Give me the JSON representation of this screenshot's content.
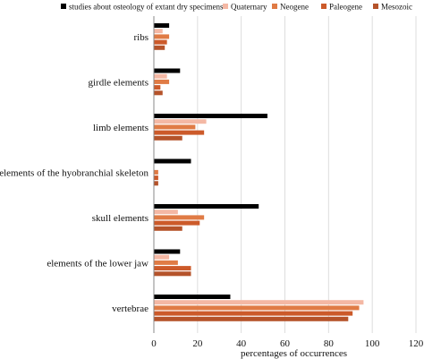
{
  "chart_data": {
    "type": "bar",
    "orientation": "horizontal",
    "title": "",
    "xlabel": "percentages of occurrences",
    "ylabel": "",
    "xlim": [
      0,
      120
    ],
    "xticks": [
      "0",
      "20",
      "40",
      "60",
      "80",
      "100",
      "120"
    ],
    "grid": true,
    "legend_position": "top",
    "categories": [
      "ribs",
      "girdle elements",
      "limb elements",
      "elements of the hyobranchial skeleton",
      "skull elements",
      "elements of the lower jaw",
      "vertebrae"
    ],
    "series": [
      {
        "name": "studies about osteology of extant dry specimens",
        "color": "#000000",
        "values": [
          7,
          12,
          52,
          17,
          48,
          12,
          35
        ]
      },
      {
        "name": "Quaternary",
        "color": "#f4b8a4",
        "values": [
          4,
          6,
          24,
          0,
          11,
          7,
          96
        ]
      },
      {
        "name": "Neogene",
        "color": "#e07b45",
        "values": [
          7,
          7,
          19,
          2,
          23,
          11,
          94
        ]
      },
      {
        "name": "Paleogene",
        "color": "#cc5a2a",
        "values": [
          6,
          3,
          23,
          2,
          21,
          17,
          91
        ]
      },
      {
        "name": "Mesozoic",
        "color": "#b5532a",
        "values": [
          5,
          4,
          13,
          2,
          13,
          17,
          89
        ]
      }
    ]
  }
}
